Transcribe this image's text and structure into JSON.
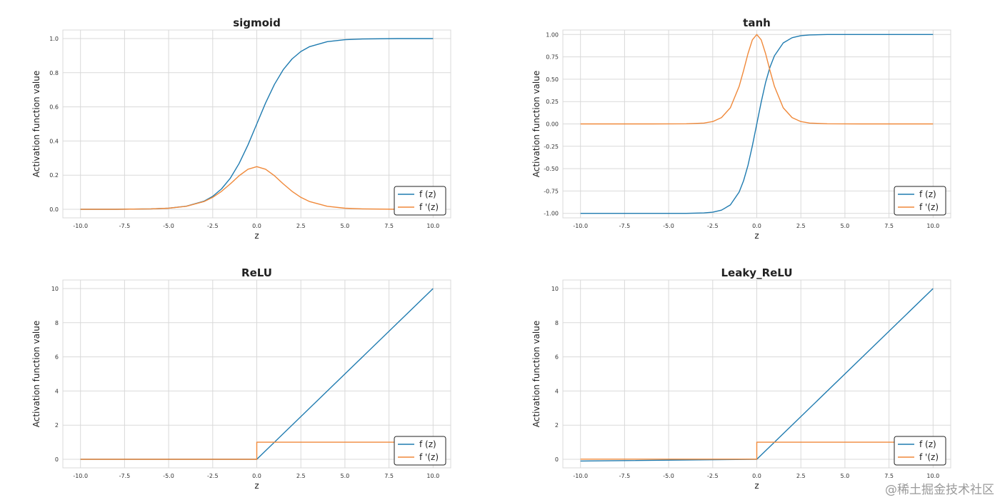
{
  "colors": {
    "f": "#1f7bb0",
    "df": "#f0893a",
    "grid": "#d9d9d9",
    "panel_edge": "#d9d9d9"
  },
  "watermark": "@稀土掘金技术社区",
  "chart_data": [
    {
      "type": "line",
      "title": "sigmoid",
      "xlabel": "z",
      "ylabel": "Activation function value",
      "xlim": [
        -11,
        11
      ],
      "ylim": [
        -0.05,
        1.05
      ],
      "x_ticks": [
        -10,
        -7.5,
        -5,
        -2.5,
        0,
        2.5,
        5,
        7.5,
        10
      ],
      "x_tick_labels": [
        "-10.0",
        "-7.5",
        "-5.0",
        "-2.5",
        "0.0",
        "2.5",
        "5.0",
        "7.5",
        "10.0"
      ],
      "y_ticks": [
        0,
        0.2,
        0.4,
        0.6,
        0.8,
        1.0
      ],
      "y_tick_labels": [
        "0.0",
        "0.2",
        "0.4",
        "0.6",
        "0.8",
        "1.0"
      ],
      "grid": true,
      "legend": {
        "position": "lower-right",
        "entries": [
          "f (z)",
          "f '(z)"
        ]
      },
      "series": [
        {
          "name": "f (z)",
          "x": [
            -10,
            -8,
            -6,
            -5,
            -4,
            -3,
            -2.5,
            -2,
            -1.5,
            -1,
            -0.5,
            0,
            0.5,
            1,
            1.5,
            2,
            2.5,
            3,
            4,
            5,
            6,
            8,
            10
          ],
          "values": [
            0.0,
            0.0003,
            0.0025,
            0.0067,
            0.018,
            0.0474,
            0.0759,
            0.1192,
            0.1824,
            0.2689,
            0.3775,
            0.5,
            0.6225,
            0.7311,
            0.8176,
            0.8808,
            0.9241,
            0.9526,
            0.982,
            0.9933,
            0.9975,
            0.9997,
            1.0
          ]
        },
        {
          "name": "f '(z)",
          "x": [
            -10,
            -8,
            -6,
            -5,
            -4,
            -3,
            -2.5,
            -2,
            -1.5,
            -1,
            -0.5,
            0,
            0.5,
            1,
            1.5,
            2,
            2.5,
            3,
            4,
            5,
            6,
            8,
            10
          ],
          "values": [
            0.0,
            0.0003,
            0.0025,
            0.0066,
            0.0177,
            0.0452,
            0.0701,
            0.105,
            0.1491,
            0.1966,
            0.235,
            0.25,
            0.235,
            0.1966,
            0.1491,
            0.105,
            0.0701,
            0.0452,
            0.0177,
            0.0066,
            0.0025,
            0.0003,
            0.0
          ]
        }
      ]
    },
    {
      "type": "line",
      "title": "tanh",
      "xlabel": "z",
      "ylabel": "Activation function value",
      "xlim": [
        -11,
        11
      ],
      "ylim": [
        -1.05,
        1.05
      ],
      "x_ticks": [
        -10,
        -7.5,
        -5,
        -2.5,
        0,
        2.5,
        5,
        7.5,
        10
      ],
      "x_tick_labels": [
        "-10.0",
        "-7.5",
        "-5.0",
        "-2.5",
        "0.0",
        "2.5",
        "5.0",
        "7.5",
        "10.0"
      ],
      "y_ticks": [
        -1,
        -0.75,
        -0.5,
        -0.25,
        0,
        0.25,
        0.5,
        0.75,
        1
      ],
      "y_tick_labels": [
        "-1.00",
        "-0.75",
        "-0.50",
        "-0.25",
        "0.00",
        "0.25",
        "0.50",
        "0.75",
        "1.00"
      ],
      "grid": true,
      "legend": {
        "position": "lower-right",
        "entries": [
          "f (z)",
          "f '(z)"
        ]
      },
      "series": [
        {
          "name": "f (z)",
          "x": [
            -10,
            -6,
            -4,
            -3,
            -2.5,
            -2,
            -1.5,
            -1,
            -0.75,
            -0.5,
            -0.25,
            0,
            0.25,
            0.5,
            0.75,
            1,
            1.5,
            2,
            2.5,
            3,
            4,
            6,
            10
          ],
          "values": [
            -1.0,
            -1.0,
            -0.9993,
            -0.9951,
            -0.9866,
            -0.964,
            -0.9051,
            -0.7616,
            -0.6351,
            -0.4621,
            -0.2449,
            0.0,
            0.2449,
            0.4621,
            0.6351,
            0.7616,
            0.9051,
            0.964,
            0.9866,
            0.9951,
            0.9993,
            1.0,
            1.0
          ]
        },
        {
          "name": "f '(z)",
          "x": [
            -10,
            -6,
            -4,
            -3,
            -2.5,
            -2,
            -1.5,
            -1,
            -0.75,
            -0.5,
            -0.25,
            0,
            0.25,
            0.5,
            0.75,
            1,
            1.5,
            2,
            2.5,
            3,
            4,
            6,
            10
          ],
          "values": [
            0.0,
            0.0,
            0.0013,
            0.0099,
            0.0266,
            0.0707,
            0.1807,
            0.42,
            0.5966,
            0.7864,
            0.94,
            1.0,
            0.94,
            0.7864,
            0.5966,
            0.42,
            0.1807,
            0.0707,
            0.0266,
            0.0099,
            0.0013,
            0.0,
            0.0
          ]
        }
      ]
    },
    {
      "type": "line",
      "title": "ReLU",
      "xlabel": "z",
      "ylabel": "Activation function value",
      "xlim": [
        -11,
        11
      ],
      "ylim": [
        -0.5,
        10.5
      ],
      "x_ticks": [
        -10,
        -7.5,
        -5,
        -2.5,
        0,
        2.5,
        5,
        7.5,
        10
      ],
      "x_tick_labels": [
        "-10.0",
        "-7.5",
        "-5.0",
        "-2.5",
        "0.0",
        "2.5",
        "5.0",
        "7.5",
        "10.0"
      ],
      "y_ticks": [
        0,
        2,
        4,
        6,
        8,
        10
      ],
      "y_tick_labels": [
        "0",
        "2",
        "4",
        "6",
        "8",
        "10"
      ],
      "grid": true,
      "legend": {
        "position": "lower-right",
        "entries": [
          "f (z)",
          "f '(z)"
        ]
      },
      "series": [
        {
          "name": "f (z)",
          "x": [
            -10,
            0,
            10
          ],
          "values": [
            0,
            0,
            10
          ]
        },
        {
          "name": "f '(z)",
          "x": [
            -10,
            0,
            0,
            10
          ],
          "values": [
            0,
            0,
            1,
            1
          ]
        }
      ]
    },
    {
      "type": "line",
      "title": "Leaky_ReLU",
      "xlabel": "z",
      "ylabel": "Activation function value",
      "xlim": [
        -11,
        11
      ],
      "ylim": [
        -0.5,
        10.5
      ],
      "x_ticks": [
        -10,
        -7.5,
        -5,
        -2.5,
        0,
        2.5,
        5,
        7.5,
        10
      ],
      "x_tick_labels": [
        "-10.0",
        "-7.5",
        "-5.0",
        "-2.5",
        "0.0",
        "2.5",
        "5.0",
        "7.5",
        "10.0"
      ],
      "y_ticks": [
        0,
        2,
        4,
        6,
        8,
        10
      ],
      "y_tick_labels": [
        "0",
        "2",
        "4",
        "6",
        "8",
        "10"
      ],
      "grid": true,
      "legend": {
        "position": "lower-right",
        "entries": [
          "f (z)",
          "f '(z)"
        ]
      },
      "series": [
        {
          "name": "f (z)",
          "x": [
            -10,
            0,
            10
          ],
          "values": [
            -0.1,
            0,
            10
          ]
        },
        {
          "name": "f '(z)",
          "x": [
            -10,
            0,
            0,
            10
          ],
          "values": [
            0.01,
            0.01,
            1,
            1
          ]
        }
      ]
    }
  ]
}
